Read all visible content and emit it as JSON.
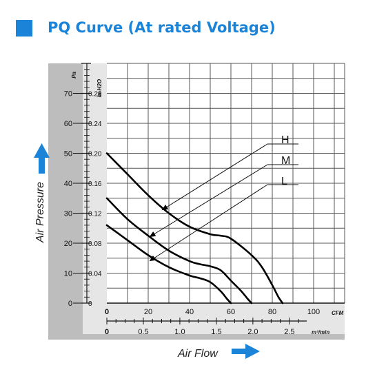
{
  "header": {
    "title": "PQ Curve (At rated Voltage)"
  },
  "chart_data": {
    "type": "line",
    "title": "PQ Curve (At rated Voltage)",
    "xlabel": "Air Flow",
    "ylabel": "Air Pressure",
    "x_unit_cfm": "CFM",
    "x_unit_m3": "m³/min",
    "y_unit_pa": "Pa",
    "y_unit_inh2o": "In-H2O",
    "xlim_cfm": [
      0,
      115
    ],
    "ylim_pa": [
      0,
      80
    ],
    "x_ticks_cfm": [
      "0",
      "20",
      "40",
      "60",
      "80",
      "100"
    ],
    "x_ticks_m3": [
      "0",
      "0.5",
      "1.0",
      "1.5",
      "2.0",
      "2.5"
    ],
    "y_ticks_pa": [
      "0",
      "10",
      "20",
      "30",
      "40",
      "50",
      "60",
      "70"
    ],
    "y_ticks_inh2o": [
      "0",
      "0.04",
      "0.08",
      "0.12",
      "0.16",
      "0.20",
      "0.24",
      "0.28"
    ],
    "grid": true,
    "colors": {
      "accent": "#1b84d8",
      "frame": "#bdbdbd",
      "curve": "#000000"
    },
    "series": [
      {
        "name": "H",
        "x": [
          0,
          10,
          20,
          30,
          40,
          50,
          55,
          60,
          70,
          75,
          80,
          83,
          85
        ],
        "y": [
          50,
          43,
          36,
          30,
          25.5,
          23,
          22.5,
          21.5,
          16,
          12,
          6,
          2,
          0
        ]
      },
      {
        "name": "M",
        "x": [
          0,
          10,
          20,
          30,
          40,
          45,
          50,
          55,
          60,
          65,
          68,
          70
        ],
        "y": [
          35,
          28,
          22.5,
          17.5,
          14,
          13,
          12.3,
          11,
          7.5,
          4,
          1.5,
          0
        ]
      },
      {
        "name": "L",
        "x": [
          0,
          10,
          20,
          30,
          40,
          45,
          50,
          55,
          58,
          60
        ],
        "y": [
          26,
          21,
          16,
          12,
          9.2,
          8.3,
          7,
          4,
          1.5,
          0
        ]
      }
    ]
  }
}
